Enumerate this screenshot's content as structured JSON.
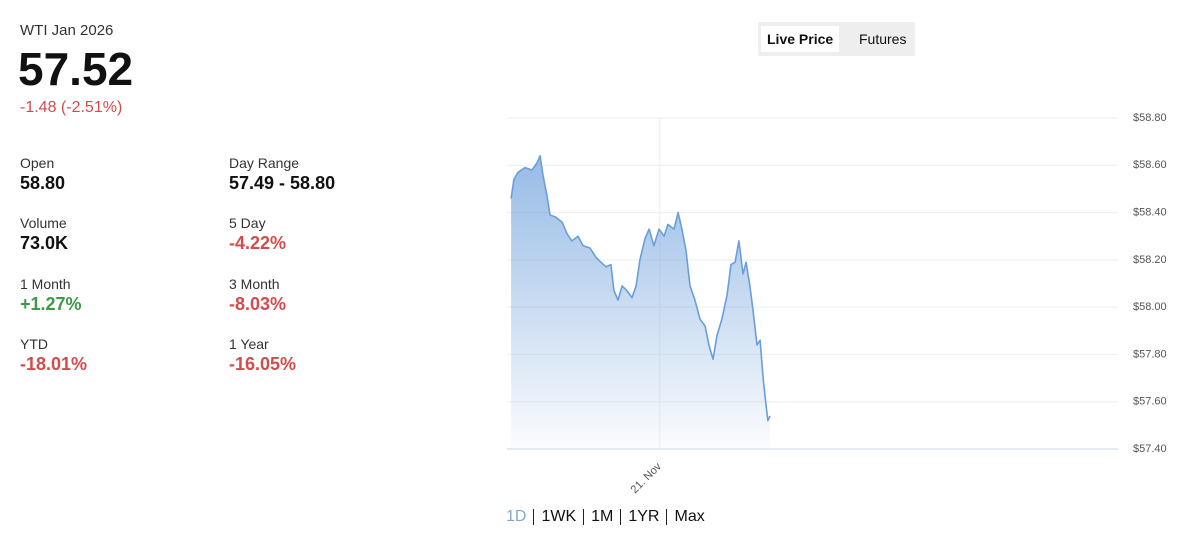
{
  "header": {
    "title": "WTI Jan 2026",
    "price": "57.52",
    "change": "-1.48 (-2.51%)"
  },
  "stats": [
    {
      "label": "Open",
      "value": "58.80"
    },
    {
      "label": "Day Range",
      "value": "57.49 - 58.80"
    },
    {
      "label": "Volume",
      "value": "73.0K"
    },
    {
      "label": "5 Day",
      "value": "-4.22%"
    },
    {
      "label": "1 Month",
      "value": "+1.27%"
    },
    {
      "label": "3 Month",
      "value": "-8.03%"
    },
    {
      "label": "YTD",
      "value": "-18.01%"
    },
    {
      "label": "1 Year",
      "value": "-16.05%"
    }
  ],
  "tabs": [
    "Live Price",
    "Futures"
  ],
  "ranges": [
    "1D",
    "1WK",
    "1M",
    "1YR",
    "Max"
  ],
  "chart_data": {
    "type": "line",
    "x": [
      -5.84,
      -5.73,
      -5.57,
      -5.29,
      -5.02,
      -4.82,
      -4.7,
      -4.59,
      -4.43,
      -4.31,
      -4.08,
      -3.84,
      -3.64,
      -3.45,
      -3.21,
      -3.01,
      -2.74,
      -2.5,
      -2.31,
      -2.11,
      -1.92,
      -1.8,
      -1.64,
      -1.48,
      -1.29,
      -1.09,
      -0.93,
      -0.78,
      -0.58,
      -0.42,
      -0.23,
      -0.03,
      0.17,
      0.32,
      0.56,
      0.72,
      0.87,
      1.03,
      1.19,
      1.38,
      1.58,
      1.78,
      1.93,
      2.09,
      2.25,
      2.44,
      2.64,
      2.8,
      2.96,
      3.11,
      3.27,
      3.39,
      3.54,
      3.66,
      3.82,
      3.94,
      4.06,
      4.17,
      4.25,
      4.33
    ],
    "series": [
      {
        "color": "#6a9edb",
        "values": [
          58.46,
          58.54,
          58.57,
          58.59,
          58.58,
          58.61,
          58.64,
          58.56,
          58.47,
          58.39,
          58.38,
          58.36,
          58.31,
          58.28,
          58.3,
          58.26,
          58.25,
          58.21,
          58.19,
          58.17,
          58.18,
          58.07,
          58.03,
          58.09,
          58.07,
          58.04,
          58.09,
          58.2,
          58.29,
          58.33,
          58.26,
          58.33,
          58.3,
          58.35,
          58.33,
          58.4,
          58.33,
          58.24,
          58.09,
          58.03,
          57.95,
          57.92,
          57.84,
          57.78,
          57.88,
          57.95,
          58.05,
          58.18,
          58.19,
          58.28,
          58.14,
          58.19,
          58.09,
          57.99,
          57.84,
          57.86,
          57.7,
          57.59,
          57.52,
          57.54
        ]
      }
    ],
    "xlim": [
      -6,
      18
    ],
    "xticks": [
      {
        "value": 0,
        "label": "21. Nov"
      }
    ],
    "ylim": [
      57.4,
      58.8
    ],
    "yticks": [
      {
        "value": 57.4,
        "label": "$57.40"
      },
      {
        "value": 57.6,
        "label": "$57.60"
      },
      {
        "value": 57.8,
        "label": "$57.80"
      },
      {
        "value": 58.0,
        "label": "$58.00"
      },
      {
        "value": 58.2,
        "label": "$58.20"
      },
      {
        "value": 58.4,
        "label": "$58.40"
      },
      {
        "value": 58.6,
        "label": "$58.60"
      },
      {
        "value": 58.8,
        "label": "$58.80"
      }
    ],
    "grid": true
  }
}
